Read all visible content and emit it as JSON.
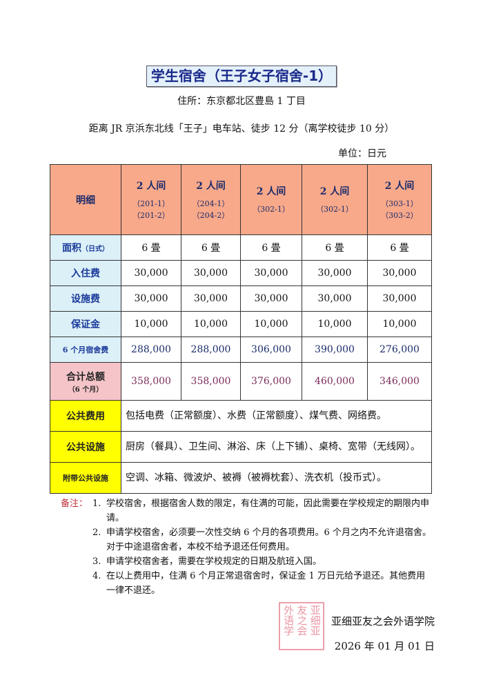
{
  "title": "学生宿舍（王子女子宿舍-1）",
  "address": "住所：东京都北区豊島 1 丁目",
  "access": "距离 JR 京浜东北线「王子」电车站、徒步 12 分（离学校徒步 10 分）",
  "unit": "单位：日元",
  "table": {
    "header_label": "明细",
    "rooms": [
      {
        "type": "2 人间",
        "ids": [
          "（201-1）",
          "（201-2）"
        ]
      },
      {
        "type": "2 人间",
        "ids": [
          "（204-1）",
          "（204-2）"
        ]
      },
      {
        "type": "2 人间",
        "ids": [
          "（302-1）",
          ""
        ]
      },
      {
        "type": "2 人间",
        "ids": [
          "（302-1）",
          ""
        ]
      },
      {
        "type": "2 人间",
        "ids": [
          "（303-1）",
          "（303-2）"
        ]
      }
    ],
    "rows": [
      {
        "label": "面积",
        "sub": "（日式）",
        "values": [
          "6 畳",
          "6 畳",
          "6 畳",
          "6 畳",
          "6 畳"
        ]
      },
      {
        "label": "入住费",
        "values": [
          "30,000",
          "30,000",
          "30,000",
          "30,000",
          "30,000"
        ]
      },
      {
        "label": "设施费",
        "values": [
          "30,000",
          "30,000",
          "30,000",
          "30,000",
          "30,000"
        ]
      },
      {
        "label": "保证金",
        "values": [
          "10,000",
          "10,000",
          "10,000",
          "10,000",
          "10,000"
        ]
      },
      {
        "label": "6 个月宿舍费",
        "values": [
          "288,000",
          "288,000",
          "306,000",
          "390,000",
          "276,000"
        ]
      }
    ],
    "total": {
      "label": "合计总额",
      "sub": "（6 个月）",
      "values": [
        "358,000",
        "358,000",
        "376,000",
        "460,000",
        "346,000"
      ]
    },
    "info": [
      {
        "label": "公共费用",
        "text": "包括电费（正常额度）、水费（正常额度）、煤气费、网络费。"
      },
      {
        "label": "公共设施",
        "text": "厨房（餐具）、卫生间、淋浴、床（上下铺）、桌椅、宽带（无线网）。"
      },
      {
        "label": "附带公共设施",
        "text": "空调、冰箱、微波炉、被褥（被褥枕套）、洗衣机（投币式）。"
      }
    ]
  },
  "notes": {
    "heading": "备注：",
    "items": [
      {
        "num": "1.",
        "text": "学校宿舍，根据宿舍人数的限定，有住满的可能，因此需要在学校规定的期限内申请。"
      },
      {
        "num": "2.",
        "text": "申请学校宿舍，必须要一次性交纳 6 个月的各项费用。6 个月之内不允许退宿舍。对于中途退宿舍者，本校不给予退还任何费用。"
      },
      {
        "num": "3.",
        "text": "申请学校宿舍者，需要在学校规定的日期及航班入国。"
      },
      {
        "num": "4.",
        "text": "在以上费用中，住满 6 个月正常退宿舍时，保证金 1 万日元给予退还。其他费用一律不退还。"
      }
    ]
  },
  "signature": "亚细亚友之会外语学院",
  "date": "2026 年 01 月 01 日",
  "stamp_text": [
    "亚细亚",
    "友之会",
    "外语学"
  ],
  "colors": {
    "header": "#f8a98a",
    "label": "#dcf0f8",
    "total": "#f4c4c8",
    "yellow": "#ffff00",
    "stamp": "#dc5064"
  }
}
